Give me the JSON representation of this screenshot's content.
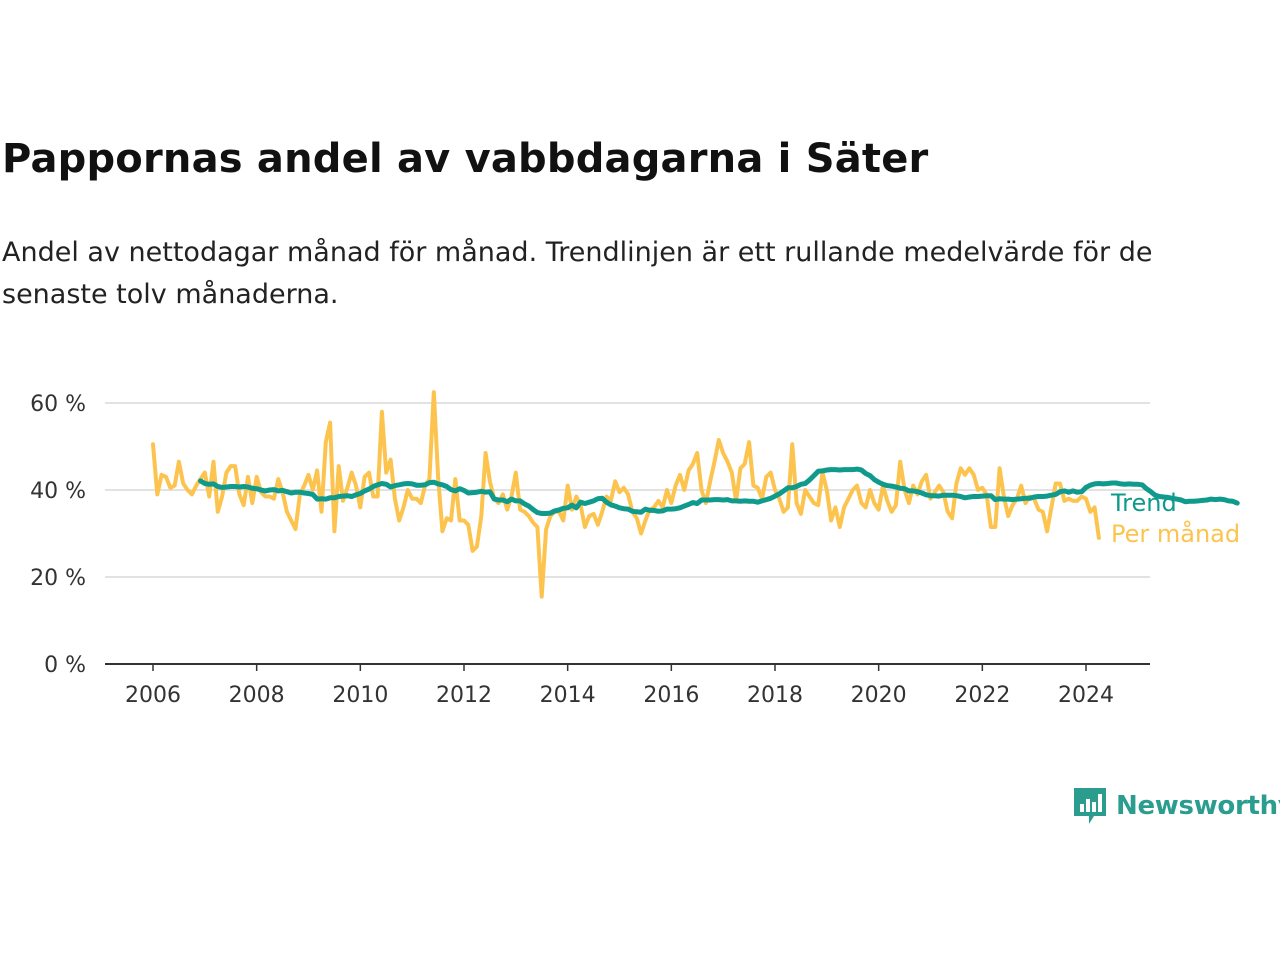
{
  "title": "Pappornas andel av vabbdagarna i Säter",
  "subtitle": "Andel av nettodagar månad för månad. Trendlinjen är ett rullande medelvärde för de senaste tolv månaderna.",
  "brand": {
    "name": "Newsworthy",
    "color": "#2a9d8f",
    "icon": "newsworthy-logo-icon"
  },
  "colors": {
    "monthly": "#fcc44f",
    "trend": "#0f9a8c",
    "grid": "#d9d9d9",
    "axis": "#333333"
  },
  "chart_data": {
    "type": "line",
    "grid": true,
    "ylim": [
      0,
      60
    ],
    "yticks": [
      0,
      20,
      40,
      60
    ],
    "ytick_labels": [
      "0 %",
      "20 %",
      "40 %",
      "60 %"
    ],
    "xlim": [
      2006,
      2025.2
    ],
    "xticks": [
      2006,
      2008,
      2010,
      2012,
      2014,
      2016,
      2018,
      2020,
      2022,
      2024
    ],
    "xtick_labels": [
      "2006",
      "2008",
      "2010",
      "2012",
      "2014",
      "2016",
      "2018",
      "2020",
      "2022",
      "2024"
    ],
    "series": [
      {
        "name": "Per månad",
        "color": "#fcc44f",
        "start": 2006.0,
        "step": 0.08333,
        "values": [
          50.5,
          39,
          43.5,
          43,
          40.5,
          41,
          46.5,
          41.5,
          40,
          39,
          41,
          42.5,
          44,
          38.5,
          46.5,
          35,
          38.5,
          44,
          45.5,
          45.5,
          39,
          36.5,
          43,
          37,
          43,
          39.5,
          38.5,
          38.5,
          38,
          42.5,
          39.5,
          35,
          33,
          31,
          39,
          41,
          43.5,
          40,
          44.5,
          35,
          51,
          55.5,
          30.5,
          45.5,
          37.5,
          40.5,
          44,
          41,
          36,
          43,
          44,
          38.5,
          38.5,
          58,
          44,
          47,
          38,
          33,
          36,
          40,
          38,
          38,
          37,
          41,
          42.5,
          62.5,
          43,
          30.5,
          33.5,
          33,
          42.5,
          33,
          33,
          32,
          26,
          27,
          34,
          48.5,
          42,
          38,
          37,
          39,
          35.5,
          38.5,
          44,
          35.5,
          35,
          34,
          32.5,
          31.5,
          15.5,
          31,
          34,
          35,
          35,
          33,
          41,
          35.5,
          38.5,
          36.5,
          31.5,
          34,
          34.5,
          32,
          35,
          38.5,
          37.5,
          42,
          39.5,
          40.5,
          39,
          35,
          33.5,
          30,
          33,
          35.5,
          36,
          37.5,
          36,
          40,
          37,
          41,
          43.5,
          40,
          44.5,
          46,
          48.5,
          40,
          37,
          42,
          46.5,
          51.5,
          48.5,
          46.5,
          44,
          37.5,
          45,
          46,
          51,
          41,
          40.5,
          38,
          43,
          44,
          40,
          38,
          35,
          36,
          50.5,
          37,
          34.5,
          40,
          38.5,
          37,
          36.5,
          44,
          40,
          33,
          36,
          31.5,
          36,
          38,
          40,
          41,
          37,
          36,
          40,
          37,
          35.5,
          41,
          37.5,
          35,
          36.5,
          46.5,
          40,
          37,
          41,
          39,
          42,
          43.5,
          38,
          39.5,
          41,
          39.5,
          35,
          33.5,
          41.5,
          45,
          43.5,
          45,
          43.5,
          40,
          40.5,
          39,
          31.5,
          31.5,
          45,
          38.5,
          34,
          36.5,
          38,
          41,
          37,
          38.5,
          38,
          35.5,
          35,
          30.5,
          36,
          41.5,
          41.5,
          37.5,
          38,
          37.5,
          37.5,
          38.5,
          38,
          35,
          36,
          29
        ]
      },
      {
        "name": "Trend",
        "color": "#0f9a8c",
        "start": 2006.917,
        "step": 0.08333,
        "values": [
          42.1,
          41.5,
          41.3,
          41.4,
          40.8,
          40.6,
          40.7,
          40.8,
          40.8,
          40.7,
          40.8,
          40.7,
          40.4,
          40.3,
          40,
          39.8,
          40,
          40.1,
          39.8,
          39.9,
          39.6,
          39.3,
          39.5,
          39.5,
          39.3,
          39.2,
          39,
          37.9,
          38,
          37.9,
          38.2,
          38.2,
          38.5,
          38.6,
          38.7,
          38.5,
          38.9,
          39.2,
          39.8,
          40.2,
          40.8,
          41.2,
          41.5,
          41.3,
          40.7,
          41,
          41.2,
          41.4,
          41.5,
          41.4,
          41.1,
          41.1,
          41.2,
          41.7,
          41.8,
          41.4,
          41.2,
          40.8,
          40.1,
          39.8,
          40.3,
          39.9,
          39.3,
          39.4,
          39.5,
          39.7,
          39.5,
          39.6,
          37.9,
          37.7,
          37.7,
          37.3,
          37.9,
          37.5,
          37.5,
          36.8,
          36.3,
          35.5,
          34.8,
          34.6,
          34.6,
          34.7,
          35.2,
          35.4,
          35.8,
          35.9,
          36.5,
          35.9,
          37.2,
          36.9,
          37.2,
          37.5,
          38,
          38.1,
          37.2,
          36.6,
          36.3,
          35.9,
          35.7,
          35.6,
          35.1,
          35,
          34.9,
          35.6,
          35.3,
          35.3,
          35.1,
          35.2,
          35.6,
          35.6,
          35.7,
          35.9,
          36.3,
          36.7,
          37.1,
          36.9,
          37.7,
          37.7,
          37.7,
          37.8,
          37.8,
          37.7,
          37.8,
          37.5,
          37.5,
          37.4,
          37.5,
          37.4,
          37.4,
          37.2,
          37.5,
          37.8,
          38.1,
          38.6,
          39.1,
          39.8,
          40.5,
          40.5,
          40.8,
          41.3,
          41.5,
          42.3,
          43.3,
          44.3,
          44.4,
          44.6,
          44.7,
          44.7,
          44.6,
          44.7,
          44.7,
          44.7,
          44.8,
          44.6,
          43.8,
          43.3,
          42.4,
          41.8,
          41.3,
          41,
          40.9,
          40.7,
          40.4,
          40.3,
          39.8,
          39.8,
          39.6,
          39.3,
          38.9,
          38.7,
          38.7,
          38.6,
          38.8,
          38.8,
          38.8,
          38.7,
          38.5,
          38.2,
          38.4,
          38.5,
          38.5,
          38.6,
          38.7,
          38.7,
          37.8,
          38,
          37.9,
          37.9,
          37.8,
          37.9,
          38,
          38.1,
          38.1,
          38.4,
          38.5,
          38.5,
          38.6,
          38.8,
          39,
          39.6,
          39.8,
          39.5,
          39.8,
          39.5,
          39.6,
          40.6,
          41.1,
          41.4,
          41.5,
          41.4,
          41.5,
          41.6,
          41.6,
          41.4,
          41.3,
          41.4,
          41.3,
          41.3,
          41.2,
          40.3,
          39.6,
          38.8,
          38.5,
          38.4,
          38.3,
          38.1,
          37.9,
          37.7,
          37.3,
          37.4,
          37.4,
          37.5,
          37.6,
          37.7,
          37.9,
          37.8,
          37.9,
          37.8,
          37.5,
          37.4,
          37
        ]
      }
    ]
  }
}
